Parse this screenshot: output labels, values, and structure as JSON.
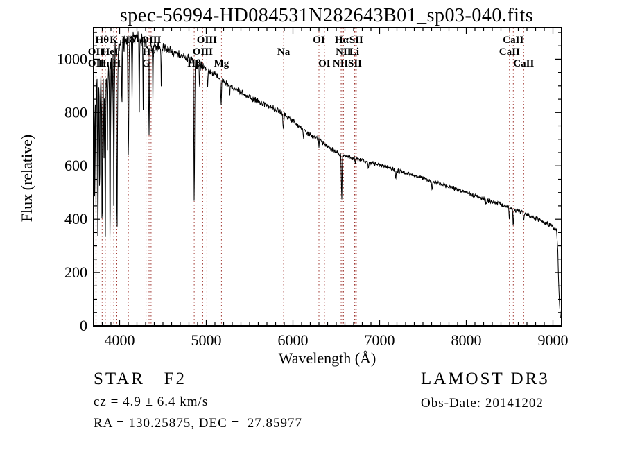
{
  "title": "spec-56994-HD084531N282643B01_sp03-040.fits",
  "footer": {
    "star_class": "STAR   F2",
    "cz": "cz = 4.9 ± 6.4 km/s",
    "radec": "RA = 130.25875, DEC =  27.85977",
    "survey": "LAMOST DR3",
    "obs_date": "Obs-Date: 20141202"
  },
  "chart_data": {
    "type": "line",
    "title": "spec-56994-HD084531N282643B01_sp03-040.fits",
    "xlabel": "Wavelength (Å)",
    "ylabel": "Flux (relative)",
    "xlim": [
      3700,
      9100
    ],
    "ylim": [
      0,
      1118
    ],
    "xticks": [
      4000,
      5000,
      6000,
      7000,
      8000,
      9000
    ],
    "yticks": [
      0,
      200,
      400,
      600,
      800,
      1000
    ],
    "x_minor_step": 100,
    "y_minor_step": 50,
    "grid": false,
    "legend": "none",
    "line_color": "#000000",
    "marker_line_color": "#a13832",
    "spectral_lines": [
      {
        "label": "OII",
        "wavelength": 3727,
        "row": 2
      },
      {
        "label": "OII",
        "wavelength": 3729,
        "row": 3
      },
      {
        "label": "Hθ",
        "wavelength": 3798,
        "row": 1
      },
      {
        "label": "Hη",
        "wavelength": 3835,
        "row": 3
      },
      {
        "label": "HeI",
        "wavelength": 3889,
        "row": 2
      },
      {
        "label": "K",
        "wavelength": 3933,
        "row": 1
      },
      {
        "label": "H",
        "wavelength": 3968,
        "row": 3
      },
      {
        "label": "Hδ",
        "wavelength": 4101,
        "row": 1
      },
      {
        "label": "G",
        "wavelength": 4305,
        "row": 3
      },
      {
        "label": "Hγ",
        "wavelength": 4340,
        "row": 2
      },
      {
        "label": "OIII",
        "wavelength": 4363,
        "row": 1
      },
      {
        "label": "Hβ",
        "wavelength": 4861,
        "row": 3
      },
      {
        "label": "OIII",
        "wavelength": 4959,
        "row": 2
      },
      {
        "label": "OIII",
        "wavelength": 5007,
        "row": 1
      },
      {
        "label": "Mg",
        "wavelength": 5175,
        "row": 3
      },
      {
        "label": "Na",
        "wavelength": 5893,
        "row": 2
      },
      {
        "label": "OI",
        "wavelength": 6300,
        "row": 1
      },
      {
        "label": "OI",
        "wavelength": 6363,
        "row": 3
      },
      {
        "label": "NII",
        "wavelength": 6548,
        "row": 3
      },
      {
        "label": "Hα",
        "wavelength": 6563,
        "row": 1
      },
      {
        "label": "NII",
        "wavelength": 6583,
        "row": 2
      },
      {
        "label": "Li",
        "wavelength": 6708,
        "row": 2
      },
      {
        "label": "SII",
        "wavelength": 6716,
        "row": 3
      },
      {
        "label": "SII",
        "wavelength": 6731,
        "row": 1
      },
      {
        "label": "CaII",
        "wavelength": 8498,
        "row": 2
      },
      {
        "label": "CaII",
        "wavelength": 8542,
        "row": 1
      },
      {
        "label": "CaII",
        "wavelength": 8662,
        "row": 3
      }
    ],
    "continuum": [
      [
        3700,
        880
      ],
      [
        3760,
        900
      ],
      [
        3850,
        960
      ],
      [
        3920,
        1005
      ],
      [
        3980,
        1030
      ],
      [
        4060,
        1062
      ],
      [
        4140,
        1078
      ],
      [
        4220,
        1075
      ],
      [
        4300,
        1062
      ],
      [
        4400,
        1052
      ],
      [
        4500,
        1042
      ],
      [
        4600,
        1030
      ],
      [
        4700,
        1015
      ],
      [
        4800,
        1002
      ],
      [
        4900,
        985
      ],
      [
        5000,
        962
      ],
      [
        5100,
        942
      ],
      [
        5200,
        915
      ],
      [
        5300,
        895
      ],
      [
        5400,
        876
      ],
      [
        5500,
        858
      ],
      [
        5600,
        842
      ],
      [
        5700,
        827
      ],
      [
        5800,
        812
      ],
      [
        5900,
        793
      ],
      [
        6000,
        768
      ],
      [
        6100,
        740
      ],
      [
        6200,
        716
      ],
      [
        6300,
        700
      ],
      [
        6400,
        673
      ],
      [
        6500,
        652
      ],
      [
        6600,
        638
      ],
      [
        6700,
        628
      ],
      [
        6800,
        620
      ],
      [
        6900,
        612
      ],
      [
        7000,
        603
      ],
      [
        7100,
        593
      ],
      [
        7200,
        582
      ],
      [
        7300,
        572
      ],
      [
        7400,
        564
      ],
      [
        7500,
        555
      ],
      [
        7600,
        542
      ],
      [
        7700,
        532
      ],
      [
        7800,
        522
      ],
      [
        7900,
        512
      ],
      [
        8000,
        501
      ],
      [
        8100,
        489
      ],
      [
        8200,
        477
      ],
      [
        8300,
        465
      ],
      [
        8400,
        455
      ],
      [
        8500,
        444
      ],
      [
        8600,
        431
      ],
      [
        8700,
        419
      ],
      [
        8800,
        402
      ],
      [
        8900,
        388
      ],
      [
        9000,
        372
      ],
      [
        9040,
        362
      ],
      [
        9055,
        290
      ],
      [
        9070,
        120
      ],
      [
        9085,
        35
      ],
      [
        9095,
        28
      ]
    ],
    "absorption_features": [
      [
        3712,
        520,
        3
      ],
      [
        3727,
        430,
        3
      ],
      [
        3750,
        265,
        3.5
      ],
      [
        3770,
        430,
        3
      ],
      [
        3798,
        330,
        3.5
      ],
      [
        3819,
        600,
        3
      ],
      [
        3835,
        310,
        3.5
      ],
      [
        3860,
        620,
        3
      ],
      [
        3889,
        330,
        4
      ],
      [
        3912,
        690,
        3
      ],
      [
        3933,
        450,
        4
      ],
      [
        3970,
        350,
        4.5
      ],
      [
        4026,
        820,
        3
      ],
      [
        4101,
        650,
        5
      ],
      [
        4144,
        830,
        3
      ],
      [
        4227,
        800,
        3
      ],
      [
        4272,
        820,
        3
      ],
      [
        4340,
        745,
        5
      ],
      [
        4384,
        845,
        3
      ],
      [
        4481,
        890,
        3
      ],
      [
        4861,
        460,
        4.5
      ],
      [
        4922,
        900,
        3
      ],
      [
        5015,
        885,
        3
      ],
      [
        5172,
        832,
        4
      ],
      [
        5270,
        845,
        3
      ],
      [
        5890,
        736,
        5
      ],
      [
        6122,
        702,
        3
      ],
      [
        6300,
        672,
        3
      ],
      [
        6563,
        480,
        4.5
      ],
      [
        6717,
        610,
        3
      ],
      [
        6870,
        592,
        4
      ],
      [
        7186,
        548,
        4
      ],
      [
        7605,
        516,
        5
      ],
      [
        8227,
        458,
        4
      ],
      [
        8498,
        392,
        4
      ],
      [
        8542,
        368,
        4
      ],
      [
        8662,
        396,
        4
      ],
      [
        8752,
        408,
        3
      ]
    ],
    "noise_regions": [
      [
        3700,
        3990,
        62
      ],
      [
        3990,
        4480,
        30
      ],
      [
        4480,
        5000,
        18
      ],
      [
        5000,
        6000,
        12
      ],
      [
        6000,
        7000,
        9
      ],
      [
        7000,
        8000,
        8
      ],
      [
        8000,
        9100,
        9
      ]
    ]
  }
}
